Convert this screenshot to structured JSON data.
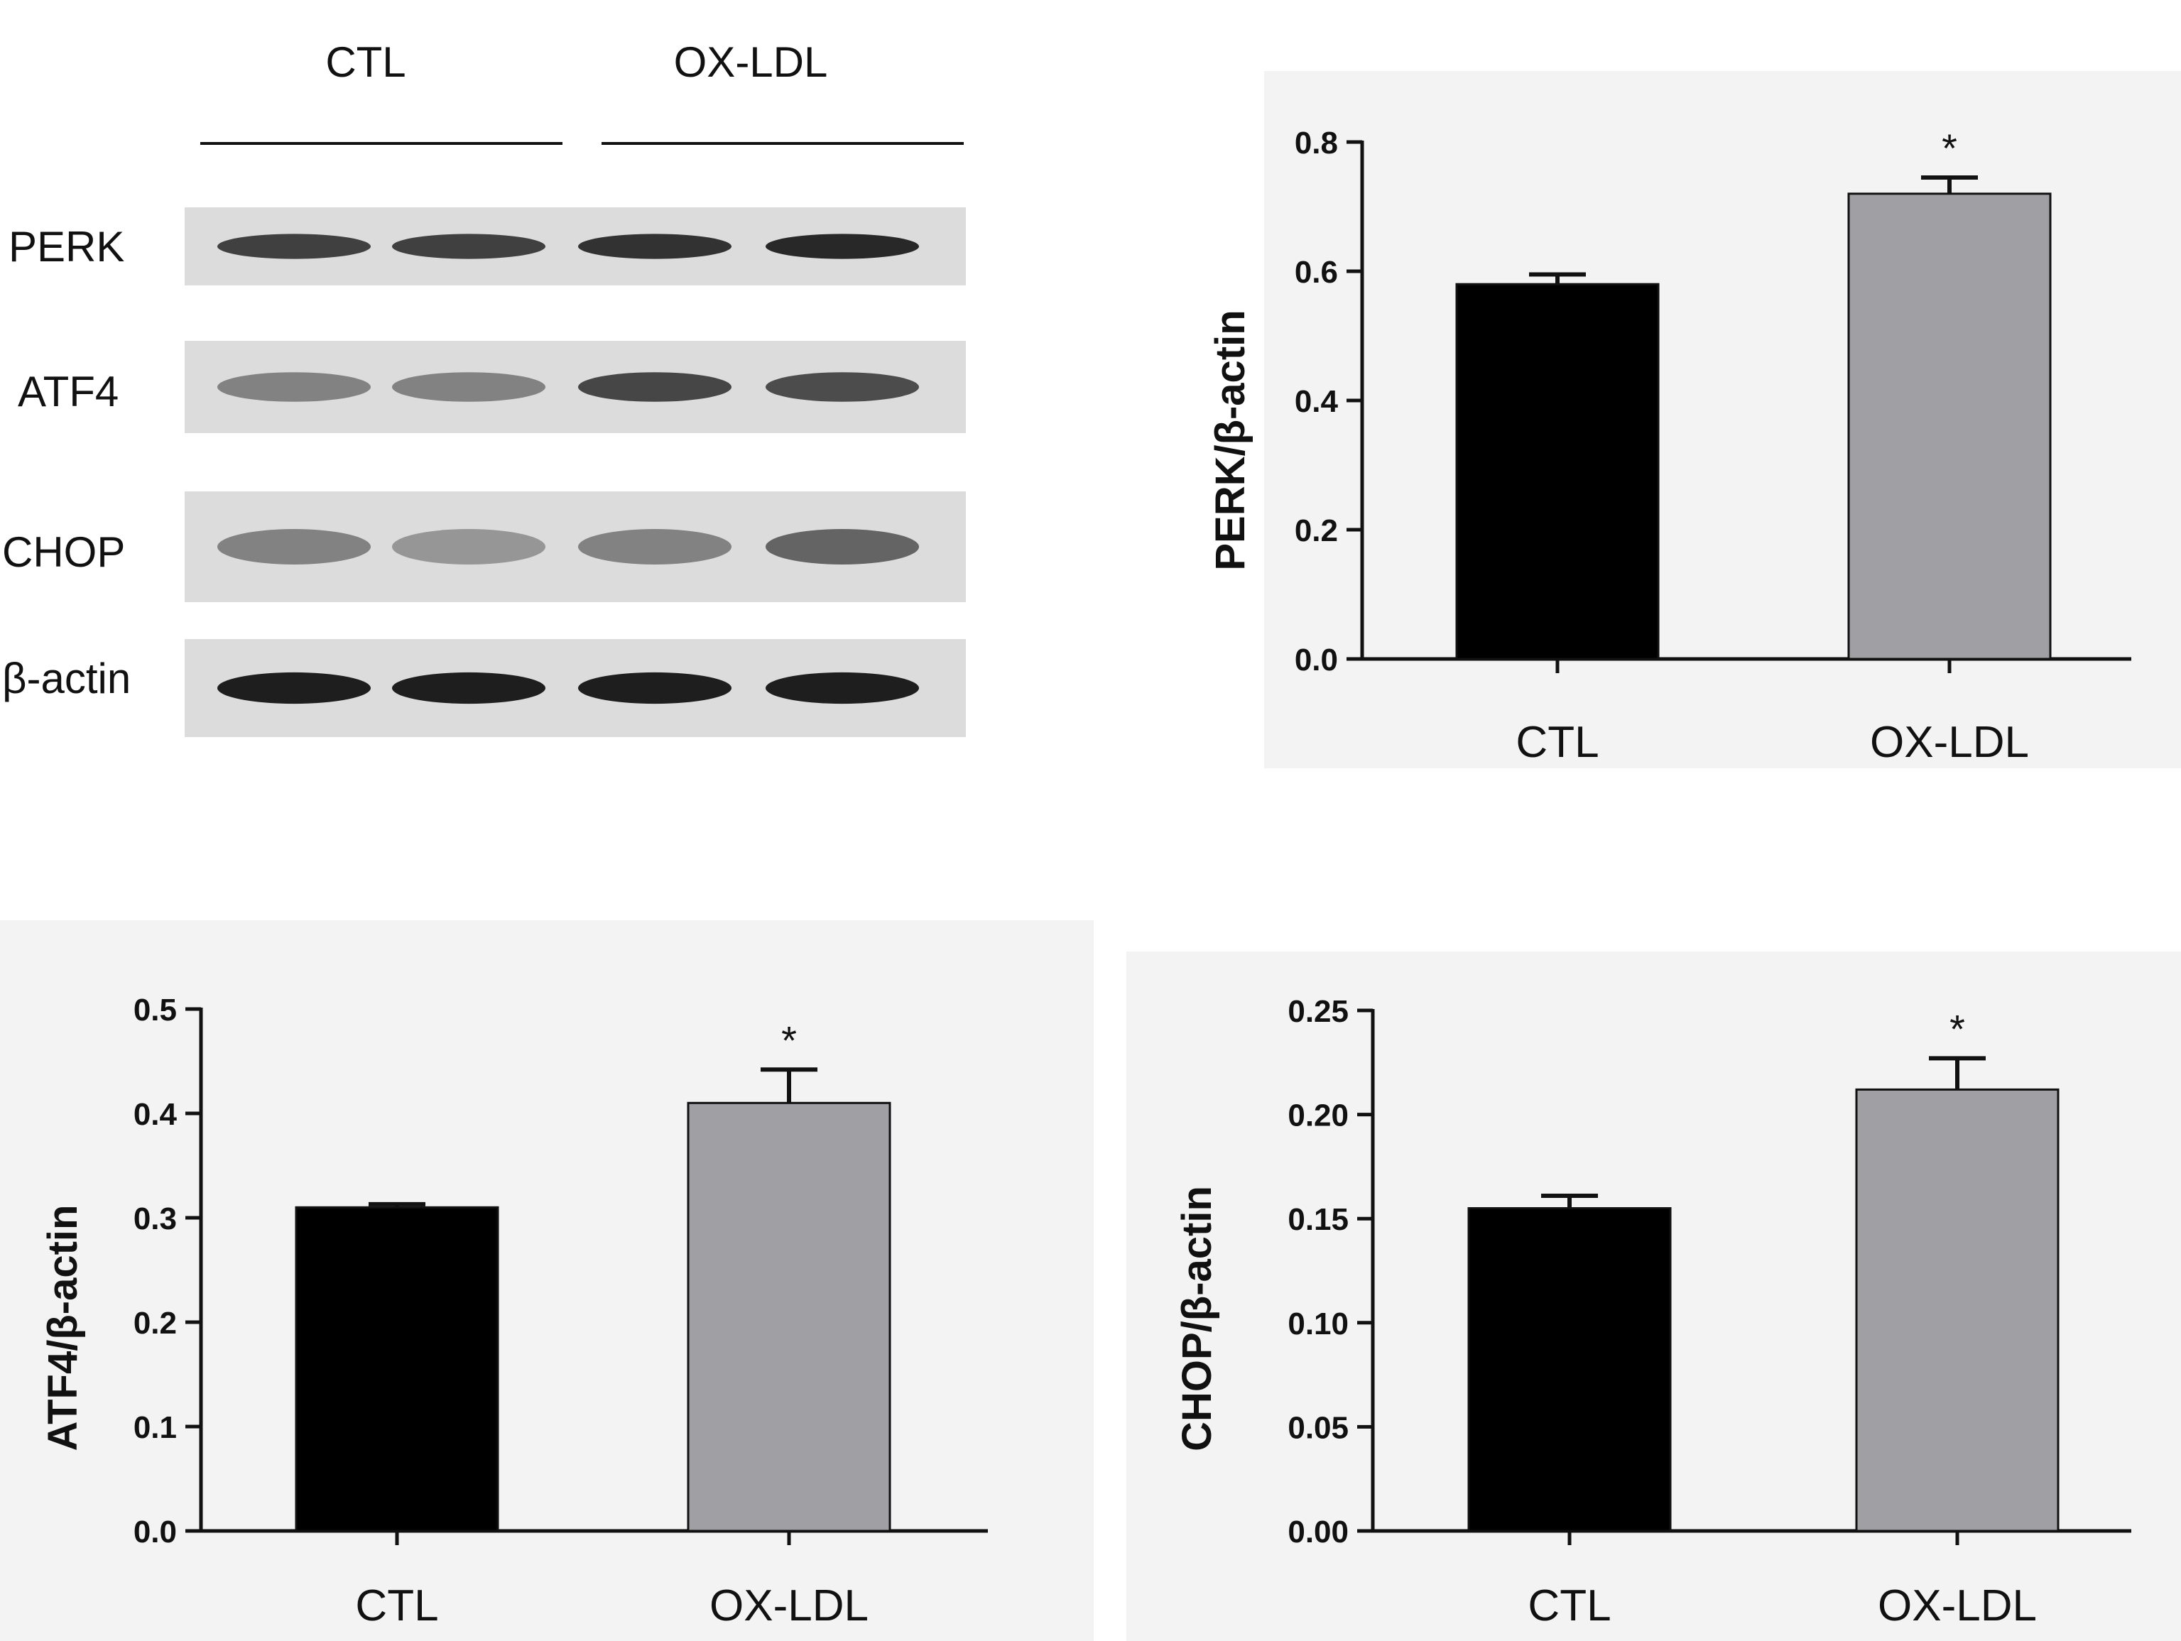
{
  "blot": {
    "groups": [
      {
        "label": "CTL"
      },
      {
        "label": "OX-LDL"
      }
    ],
    "rows": [
      {
        "label": "PERK",
        "intensity": [
          0.78,
          0.78,
          0.85,
          0.9
        ]
      },
      {
        "label": "ATF4",
        "intensity": [
          0.45,
          0.45,
          0.75,
          0.72
        ]
      },
      {
        "label": "CHOP",
        "intensity": [
          0.45,
          0.35,
          0.45,
          0.6
        ]
      },
      {
        "label": "β-actin",
        "intensity": [
          0.95,
          0.95,
          0.95,
          0.95
        ]
      }
    ]
  },
  "colors": {
    "ctl_bar": "#000000",
    "oxldl_bar": "#a0a0a4",
    "panel_bg": "#f3f3f3"
  },
  "chart_data": [
    {
      "type": "bar",
      "ylabel": "PERK/β-actin",
      "ylim": [
        0,
        0.8
      ],
      "yticks": [
        0.0,
        0.2,
        0.4,
        0.6,
        0.8
      ],
      "tick_labels": [
        "0.0",
        "0.2",
        "0.4",
        "0.6",
        "0.8"
      ],
      "categories": [
        "CTL",
        "OX-LDL"
      ],
      "values": [
        0.58,
        0.72
      ],
      "errors": [
        0.015,
        0.025
      ],
      "annotations": [
        "",
        "*"
      ]
    },
    {
      "type": "bar",
      "ylabel": "ATF4/β-actin",
      "ylim": [
        0,
        0.5
      ],
      "yticks": [
        0.0,
        0.1,
        0.2,
        0.3,
        0.4,
        0.5
      ],
      "tick_labels": [
        "0.0",
        "0.1",
        "0.2",
        "0.3",
        "0.4",
        "0.5"
      ],
      "categories": [
        "CTL",
        "OX-LDL"
      ],
      "values": [
        0.31,
        0.41
      ],
      "errors": [
        0.003,
        0.032
      ],
      "annotations": [
        "",
        "*"
      ]
    },
    {
      "type": "bar",
      "ylabel": "CHOP/β-actin",
      "ylim": [
        0,
        0.25
      ],
      "yticks": [
        0.0,
        0.05,
        0.1,
        0.15,
        0.2,
        0.25
      ],
      "tick_labels": [
        "0.00",
        "0.05",
        "0.10",
        "0.15",
        "0.20",
        "0.25"
      ],
      "categories": [
        "CTL",
        "OX-LDL"
      ],
      "values": [
        0.155,
        0.212
      ],
      "errors": [
        0.006,
        0.015
      ],
      "annotations": [
        "",
        "*"
      ]
    }
  ]
}
